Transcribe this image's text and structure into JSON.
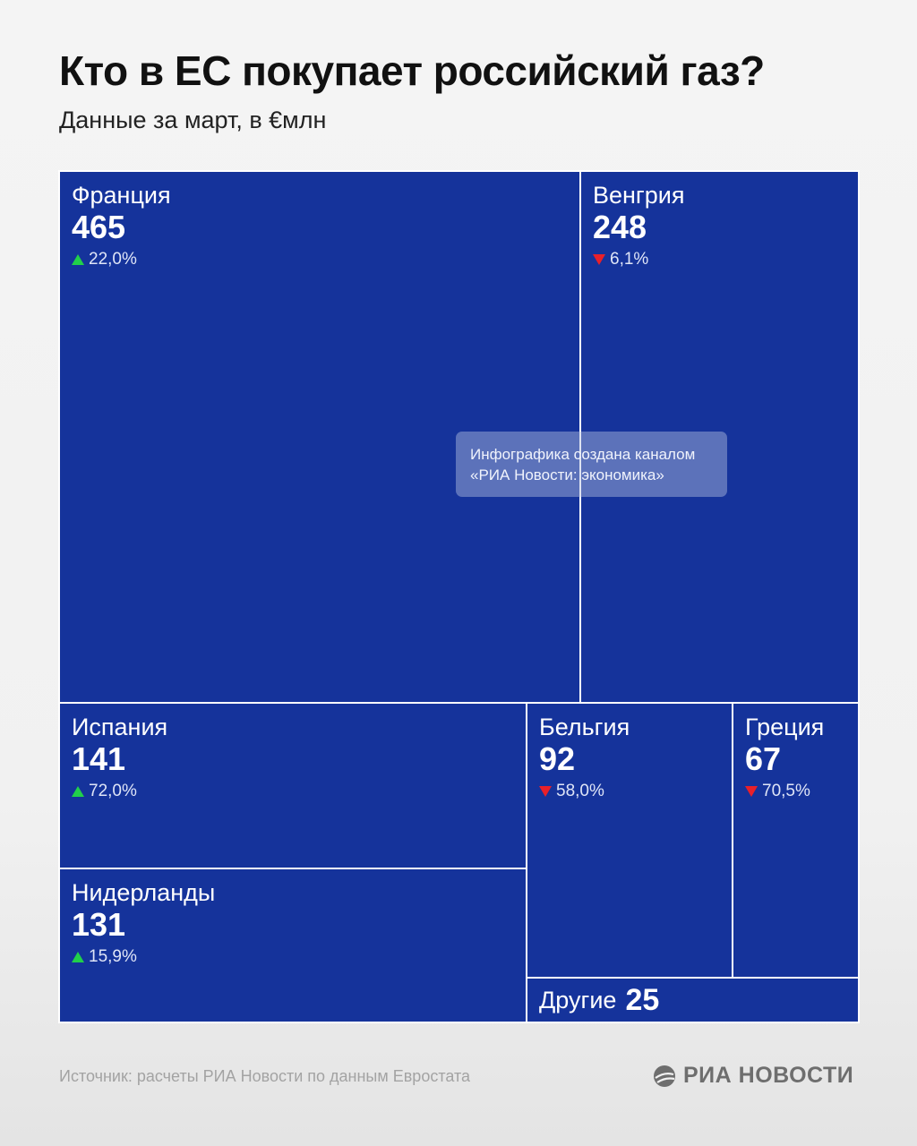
{
  "title": "Кто в ЕС покупает российский газ?",
  "subtitle": "Данные за март, в €млн",
  "colors": {
    "cell": "#15339b",
    "up": "#21d04a",
    "down": "#e8202a"
  },
  "chart_data": {
    "type": "treemap",
    "title": "Кто в ЕС покупает российский газ?",
    "subtitle": "Данные за март, в €млн",
    "items": [
      {
        "name": "Франция",
        "value": 465,
        "change": "22,0%",
        "direction": "up"
      },
      {
        "name": "Венгрия",
        "value": 248,
        "change": "6,1%",
        "direction": "down"
      },
      {
        "name": "Испания",
        "value": 141,
        "change": "72,0%",
        "direction": "up"
      },
      {
        "name": "Нидерланды",
        "value": 131,
        "change": "15,9%",
        "direction": "up"
      },
      {
        "name": "Бельгия",
        "value": 92,
        "change": "58,0%",
        "direction": "down"
      },
      {
        "name": "Греция",
        "value": 67,
        "change": "70,5%",
        "direction": "down"
      },
      {
        "name": "Другие",
        "value": 25
      }
    ]
  },
  "watermark": {
    "line1": "Инфографика создана каналом",
    "line2": "«РИА Новости: экономика»"
  },
  "footer": {
    "source": "Источник: расчеты РИА Новости по данным Евростата",
    "logo_text": "РИА НОВОСТИ"
  }
}
